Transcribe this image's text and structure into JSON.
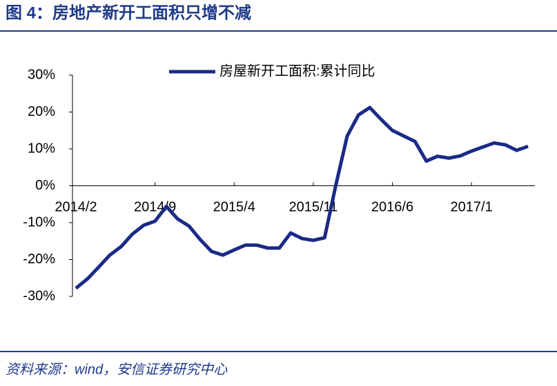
{
  "chart_data": {
    "type": "line",
    "title": "图 4：房地产新开工面积只增不减",
    "source": "资料来源：wind，安信证券研究中心",
    "categories": [
      "2014/2",
      null,
      null,
      null,
      null,
      null,
      null,
      "2014/9",
      null,
      null,
      null,
      null,
      null,
      null,
      "2015/4",
      null,
      null,
      null,
      null,
      null,
      null,
      "2015/11",
      null,
      null,
      null,
      null,
      null,
      null,
      "2016/6",
      null,
      null,
      null,
      null,
      null,
      null,
      "2017/1",
      null,
      null,
      null,
      null,
      null
    ],
    "series": [
      {
        "name": "房屋新开工面积:累计同比",
        "color": "#1b2a87",
        "values": [
          -27.8,
          -25.3,
          -22.1,
          -18.8,
          -16.5,
          -13.1,
          -10.7,
          -9.6,
          -5.6,
          -9.0,
          -10.9,
          -14.6,
          -17.8,
          -18.8,
          -17.4,
          -16.1,
          -16.1,
          -16.9,
          -16.9,
          -12.8,
          -14.3,
          -14.8,
          -14.1,
          0.2,
          13.5,
          19.2,
          21.2,
          18.0,
          15.0,
          13.5,
          12.0,
          6.7,
          8.0,
          7.5,
          8.1,
          9.4,
          10.5,
          11.6,
          11.1,
          9.6,
          10.7
        ]
      }
    ],
    "ylim": [
      -30,
      30
    ],
    "yticks": [
      {
        "value": 30,
        "label": "30%"
      },
      {
        "value": 20,
        "label": "20%"
      },
      {
        "value": 10,
        "label": "10%"
      },
      {
        "value": 0,
        "label": "0%"
      },
      {
        "value": -10,
        "label": "-10%"
      },
      {
        "value": -20,
        "label": "-20%"
      },
      {
        "value": -30,
        "label": "-30%"
      }
    ],
    "legend": "top"
  }
}
